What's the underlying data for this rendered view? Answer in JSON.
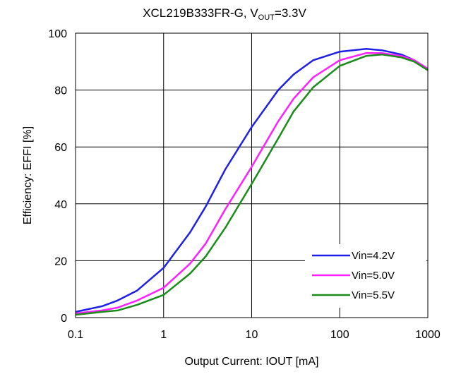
{
  "chart_data": {
    "type": "line",
    "title": {
      "prefix": "XCL219B333FR-G, V",
      "subscript": "OUT",
      "suffix": "=3.3V"
    },
    "xlabel": "Output  Current: IOUT [mA]",
    "ylabel": "Efficiency: EFFI [%]",
    "x_scale": "log",
    "xlim": [
      0.1,
      1000
    ],
    "ylim": [
      0,
      100
    ],
    "x_ticks": [
      0.1,
      1,
      10,
      100,
      1000
    ],
    "x_tick_labels": [
      "0.1",
      "1",
      "10",
      "100",
      "1000"
    ],
    "y_ticks": [
      0,
      20,
      40,
      60,
      80,
      100
    ],
    "y_tick_labels": [
      "0",
      "20",
      "40",
      "60",
      "80",
      "100"
    ],
    "grid": true,
    "legend_position": "bottom-right",
    "series": [
      {
        "name": "Vin=4.2V",
        "color": "#1f1fe6",
        "x": [
          0.1,
          0.2,
          0.3,
          0.5,
          1,
          2,
          3,
          5,
          10,
          20,
          30,
          50,
          100,
          200,
          300,
          500,
          700,
          1000
        ],
        "y": [
          2,
          4,
          6,
          9.5,
          17.5,
          30,
          39,
          52,
          67,
          80,
          85.5,
          90.5,
          93.5,
          94.5,
          94,
          92.5,
          90.5,
          87.5
        ]
      },
      {
        "name": "Vin=5.0V",
        "color": "#ff1fff",
        "x": [
          0.1,
          0.2,
          0.3,
          0.5,
          1,
          2,
          3,
          5,
          10,
          20,
          30,
          50,
          100,
          200,
          300,
          500,
          700,
          1000
        ],
        "y": [
          1.5,
          2.5,
          3.5,
          6,
          10.5,
          19,
          26,
          38,
          53,
          69,
          77,
          84.5,
          90.5,
          93,
          93,
          92,
          90.5,
          87.5
        ]
      },
      {
        "name": "Vin=5.5V",
        "color": "#1a8c1a",
        "x": [
          0.1,
          0.2,
          0.3,
          0.5,
          1,
          2,
          3,
          5,
          10,
          20,
          30,
          50,
          100,
          200,
          300,
          500,
          700,
          1000
        ],
        "y": [
          1,
          2,
          2.5,
          4.5,
          8,
          15.5,
          21.5,
          31.5,
          47,
          63,
          72.5,
          81,
          88.5,
          92,
          92.5,
          91.5,
          90,
          87
        ]
      }
    ]
  }
}
